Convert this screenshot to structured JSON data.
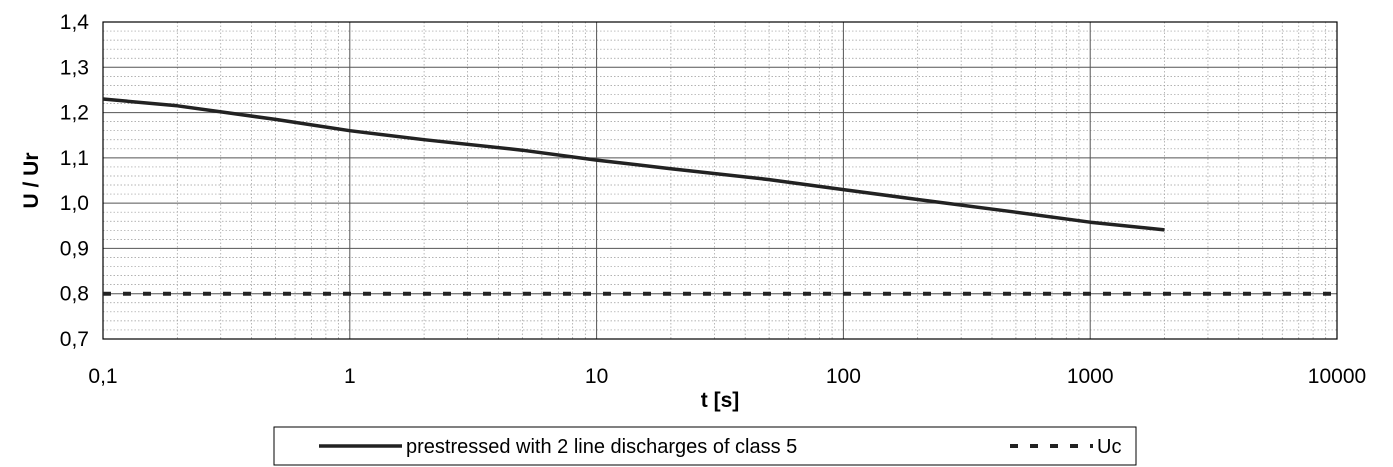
{
  "chart_data": {
    "type": "line",
    "title": "",
    "xlabel": "t [s]",
    "ylabel": "U / Ur",
    "xscale": "log",
    "xlim": [
      0.1,
      10000
    ],
    "ylim": [
      0.7,
      1.4
    ],
    "grid": true,
    "minor_grid": true,
    "legend_position": "bottom",
    "x_ticks": [
      0.1,
      1,
      10,
      100,
      1000,
      10000
    ],
    "x_tick_labels": [
      "0,1",
      "1",
      "10",
      "100",
      "1000",
      "10000"
    ],
    "y_ticks": [
      0.7,
      0.8,
      0.9,
      1.0,
      1.1,
      1.2,
      1.3,
      1.4
    ],
    "y_tick_labels": [
      "0,7",
      "0,8",
      "0,9",
      "1,0",
      "1,1",
      "1,2",
      "1,3",
      "1,4"
    ],
    "series": [
      {
        "name": "prestressed with 2 line discharges of class 5",
        "style": "solid",
        "color": "#222222",
        "x": [
          0.1,
          0.2,
          0.5,
          1,
          2,
          5,
          10,
          20,
          50,
          100,
          200,
          500,
          1000,
          2000
        ],
        "y": [
          1.23,
          1.215,
          1.185,
          1.16,
          1.14,
          1.117,
          1.095,
          1.076,
          1.052,
          1.03,
          1.008,
          0.98,
          0.958,
          0.941
        ]
      },
      {
        "name": "Uc",
        "style": "dashed",
        "color": "#222222",
        "x": [
          0.1,
          10000
        ],
        "y": [
          0.8,
          0.8
        ]
      }
    ]
  }
}
